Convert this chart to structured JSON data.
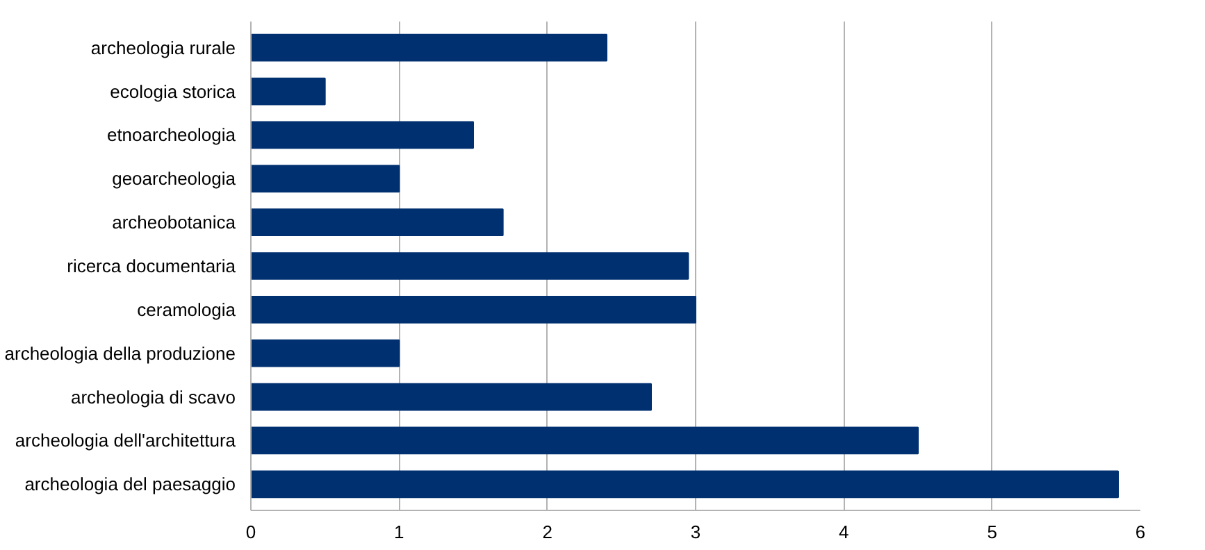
{
  "chart_data": {
    "type": "bar",
    "orientation": "horizontal",
    "categories": [
      "archeologia rurale",
      "ecologia storica",
      "etnoarcheologia",
      "geoarcheologia",
      "archeobotanica",
      "ricerca documentaria",
      "ceramologia",
      "archeologia della produzione",
      "archeologia di scavo",
      "archeologia dell'architettura",
      "archeologia del paesaggio"
    ],
    "values": [
      2.4,
      0.5,
      1.5,
      1,
      1.7,
      2.95,
      3,
      1,
      2.7,
      4.5,
      5.85
    ],
    "color": "#003070",
    "xlim": [
      0,
      6
    ],
    "xticks": [
      0,
      1,
      2,
      3,
      4,
      5,
      6
    ],
    "grid": "x"
  }
}
